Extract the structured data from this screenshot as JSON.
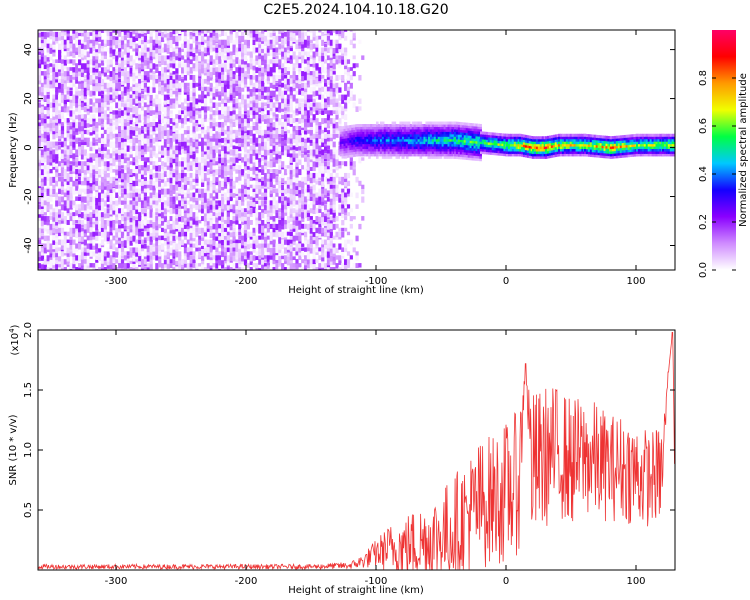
{
  "title": "C2E5.2024.104.10.18.G20",
  "chart_data": [
    {
      "type": "heatmap",
      "xlabel": "Height of straight line (km)",
      "ylabel": "Frequency (Hz)",
      "xlim": [
        -360,
        130
      ],
      "ylim": [
        -50,
        48
      ],
      "x_ticks": [
        -300,
        -200,
        -100,
        0,
        100
      ],
      "y_ticks": [
        -40,
        -20,
        0,
        20,
        40
      ],
      "colorbar": {
        "label": "Normalized spectral amplitude",
        "range": [
          0,
          1
        ],
        "ticks": [
          "0.0",
          "0.2",
          "0.4",
          "0.6",
          "0.8"
        ],
        "colors": [
          "#ffffff",
          "#cf8bff",
          "#8a00ff",
          "#1400ff",
          "#00c8ff",
          "#00ff44",
          "#f0ff00",
          "#ff9a00",
          "#ff0000",
          "#ff0066"
        ]
      },
      "noise_region_x": [
        -360,
        -110
      ],
      "band": [
        {
          "x": -128,
          "freq": 2,
          "amp": 0.25
        },
        {
          "x": -115,
          "freq": 3,
          "amp": 0.35
        },
        {
          "x": -100,
          "freq": 3,
          "amp": 0.4
        },
        {
          "x": -80,
          "freq": 3,
          "amp": 0.45
        },
        {
          "x": -60,
          "freq": 3,
          "amp": 0.5
        },
        {
          "x": -40,
          "freq": 3,
          "amp": 0.55
        },
        {
          "x": -20,
          "freq": 2,
          "amp": 0.6
        },
        {
          "x": 0,
          "freq": 1,
          "amp": 0.7
        },
        {
          "x": 10,
          "freq": 1,
          "amp": 0.8
        },
        {
          "x": 20,
          "freq": 0,
          "amp": 0.85
        },
        {
          "x": 30,
          "freq": 0,
          "amp": 0.9
        },
        {
          "x": 40,
          "freq": 1,
          "amp": 0.75
        },
        {
          "x": 60,
          "freq": 1,
          "amp": 0.7
        },
        {
          "x": 80,
          "freq": 0,
          "amp": 0.85
        },
        {
          "x": 100,
          "freq": 1,
          "amp": 0.65
        },
        {
          "x": 120,
          "freq": 1,
          "amp": 0.7
        },
        {
          "x": 130,
          "freq": 1,
          "amp": 0.75
        }
      ]
    },
    {
      "type": "line",
      "xlabel": "Height of straight line (km)",
      "ylabel": "SNR (10 * v/v)",
      "y_exponent_label": "(x10",
      "y_exponent_power": "4",
      "y_exponent_close": ")",
      "xlim": [
        -360,
        130
      ],
      "ylim": [
        0,
        2.0
      ],
      "x_ticks": [
        -300,
        -200,
        -100,
        0,
        100
      ],
      "y_ticks": [
        "0.5",
        "1.0",
        "1.5",
        "2.0"
      ],
      "y_tick_values": [
        0.5,
        1.0,
        1.5,
        2.0
      ],
      "line_color": "#ee3333",
      "series": [
        {
          "x": [
            -360,
            -300,
            -250,
            -200,
            -150,
            -120,
            -110,
            -100,
            -90,
            -80,
            -70,
            -60,
            -50,
            -40,
            -30,
            -20,
            -10,
            0,
            10,
            15,
            20,
            30,
            40,
            50,
            60,
            70,
            80,
            90,
            100,
            110,
            120,
            125,
            128,
            130
          ],
          "y": [
            0.03,
            0.03,
            0.03,
            0.03,
            0.03,
            0.04,
            0.08,
            0.15,
            0.2,
            0.22,
            0.25,
            0.28,
            0.32,
            0.4,
            0.5,
            0.6,
            0.65,
            0.7,
            0.8,
            1.72,
            0.9,
            1.0,
            1.05,
            0.95,
            1.0,
            0.95,
            0.9,
            0.9,
            0.85,
            0.8,
            0.85,
            1.65,
            1.98,
            0.9
          ],
          "y_amp": [
            0.02,
            0.02,
            0.02,
            0.02,
            0.02,
            0.03,
            0.06,
            0.12,
            0.2,
            0.25,
            0.3,
            0.35,
            0.4,
            0.45,
            0.5,
            0.55,
            0.55,
            0.6,
            0.6,
            0.0,
            0.65,
            0.6,
            0.55,
            0.55,
            0.5,
            0.5,
            0.45,
            0.45,
            0.45,
            0.4,
            0.4,
            0.0,
            0.0,
            0.3
          ]
        }
      ]
    }
  ]
}
